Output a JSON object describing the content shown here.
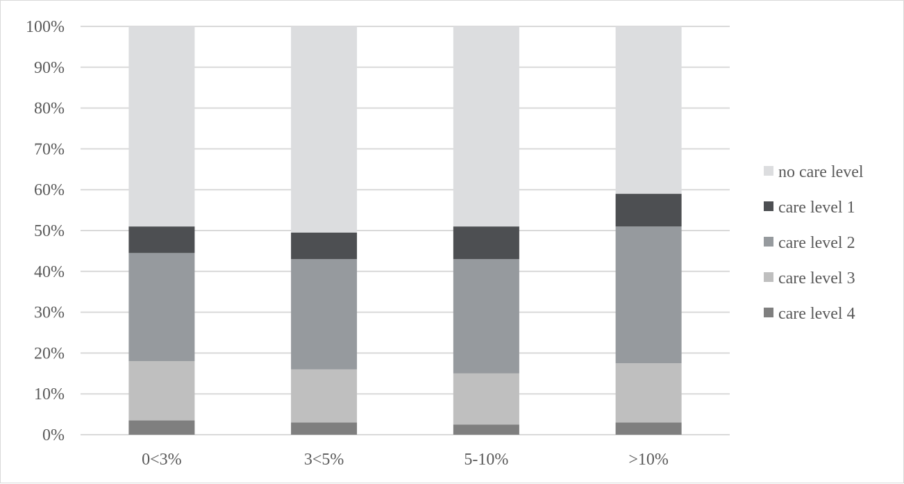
{
  "chart_data": {
    "type": "bar",
    "stacked": true,
    "percent": true,
    "categories": [
      "0-<3%",
      "3-<5%",
      "5-10%",
      ">10%"
    ],
    "category_labels": [
      "0<3%",
      "3<5%",
      "5-10%",
      ">10%"
    ],
    "series": [
      {
        "name": "care level 4",
        "color": "#7f7f7f",
        "values": [
          3.5,
          3.0,
          2.5,
          3.0
        ]
      },
      {
        "name": "care level 3",
        "color": "#bfbfbf",
        "values": [
          14.5,
          13.0,
          12.5,
          14.5
        ]
      },
      {
        "name": "care level 2",
        "color": "#969a9e",
        "values": [
          26.5,
          27.0,
          28.0,
          33.5
        ]
      },
      {
        "name": "care level 1",
        "color": "#4d4f52",
        "values": [
          6.5,
          6.5,
          8.0,
          8.0
        ]
      },
      {
        "name": "no care level",
        "color": "#dcdddf",
        "values": [
          49.0,
          50.5,
          49.0,
          41.0
        ]
      }
    ],
    "legend_order": [
      "no care level",
      "care level 1",
      "care level 2",
      "care level 3",
      "care level 4"
    ],
    "y_ticks": [
      "0%",
      "10%",
      "20%",
      "30%",
      "40%",
      "50%",
      "60%",
      "70%",
      "80%",
      "90%",
      "100%"
    ],
    "ylim": [
      0,
      100
    ],
    "grid": true,
    "legend_position": "right",
    "title": "",
    "xlabel": "",
    "ylabel": ""
  }
}
